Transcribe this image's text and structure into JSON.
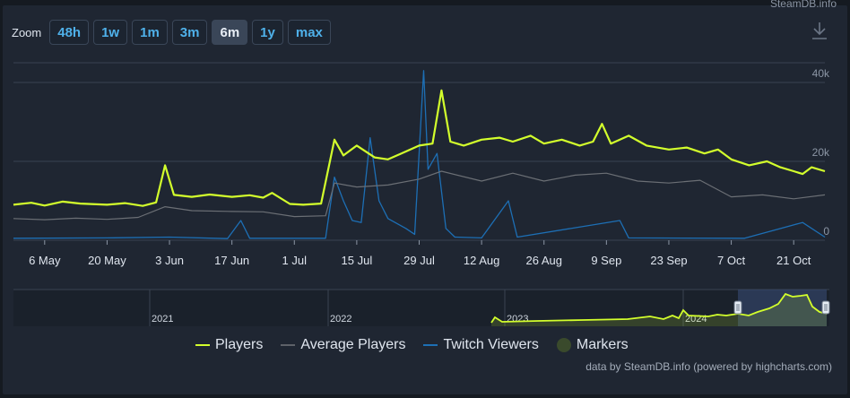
{
  "header": {
    "credit": "SteamDB.info"
  },
  "zoom": {
    "label": "Zoom",
    "buttons": [
      "48h",
      "1w",
      "1m",
      "3m",
      "6m",
      "1y",
      "max"
    ],
    "active": "6m"
  },
  "icons": {
    "download": "download-icon"
  },
  "legend": {
    "players": "Players",
    "average": "Average Players",
    "twitch": "Twitch Viewers",
    "markers": "Markers"
  },
  "footer": {
    "credit": "data by SteamDB.info (powered by highcharts.com)"
  },
  "colors": {
    "players": "#d3ff2c",
    "average": "#6b6f75",
    "twitch": "#1d6fb5",
    "markers": "#3a4a2c",
    "grid": "#3a4352"
  },
  "chart_data": {
    "type": "line",
    "x_range": [
      "2024-04-29",
      "2024-10-28"
    ],
    "y_range": [
      0,
      45000
    ],
    "y_ticks": [
      {
        "value": 0,
        "label": "0"
      },
      {
        "value": 20000,
        "label": "20k"
      },
      {
        "value": 40000,
        "label": "40k"
      }
    ],
    "x_ticks": [
      {
        "date": "2024-05-06",
        "label": "6 May"
      },
      {
        "date": "2024-05-20",
        "label": "20 May"
      },
      {
        "date": "2024-06-03",
        "label": "3 Jun"
      },
      {
        "date": "2024-06-17",
        "label": "17 Jun"
      },
      {
        "date": "2024-07-01",
        "label": "1 Jul"
      },
      {
        "date": "2024-07-15",
        "label": "15 Jul"
      },
      {
        "date": "2024-07-29",
        "label": "29 Jul"
      },
      {
        "date": "2024-08-12",
        "label": "12 Aug"
      },
      {
        "date": "2024-08-26",
        "label": "26 Aug"
      },
      {
        "date": "2024-09-09",
        "label": "9 Sep"
      },
      {
        "date": "2024-09-23",
        "label": "23 Sep"
      },
      {
        "date": "2024-10-07",
        "label": "7 Oct"
      },
      {
        "date": "2024-10-21",
        "label": "21 Oct"
      }
    ],
    "series": [
      {
        "name": "Players",
        "key": "players",
        "points": [
          [
            "2024-04-29",
            9000
          ],
          [
            "2024-05-03",
            9500
          ],
          [
            "2024-05-06",
            8800
          ],
          [
            "2024-05-10",
            9800
          ],
          [
            "2024-05-14",
            9300
          ],
          [
            "2024-05-20",
            9000
          ],
          [
            "2024-05-24",
            9400
          ],
          [
            "2024-05-28",
            8700
          ],
          [
            "2024-05-31",
            9600
          ],
          [
            "2024-06-02",
            19000
          ],
          [
            "2024-06-04",
            11500
          ],
          [
            "2024-06-08",
            11000
          ],
          [
            "2024-06-12",
            11600
          ],
          [
            "2024-06-17",
            11000
          ],
          [
            "2024-06-21",
            11400
          ],
          [
            "2024-06-24",
            10800
          ],
          [
            "2024-06-26",
            12000
          ],
          [
            "2024-06-30",
            9200
          ],
          [
            "2024-07-03",
            9000
          ],
          [
            "2024-07-07",
            9300
          ],
          [
            "2024-07-10",
            25500
          ],
          [
            "2024-07-12",
            21500
          ],
          [
            "2024-07-15",
            24000
          ],
          [
            "2024-07-19",
            21000
          ],
          [
            "2024-07-22",
            20500
          ],
          [
            "2024-07-25",
            22000
          ],
          [
            "2024-07-29",
            24000
          ],
          [
            "2024-08-01",
            24500
          ],
          [
            "2024-08-03",
            38000
          ],
          [
            "2024-08-05",
            25000
          ],
          [
            "2024-08-08",
            24000
          ],
          [
            "2024-08-12",
            25500
          ],
          [
            "2024-08-16",
            26000
          ],
          [
            "2024-08-19",
            25000
          ],
          [
            "2024-08-23",
            26500
          ],
          [
            "2024-08-26",
            24500
          ],
          [
            "2024-08-30",
            25500
          ],
          [
            "2024-09-03",
            24000
          ],
          [
            "2024-09-06",
            25000
          ],
          [
            "2024-09-08",
            29500
          ],
          [
            "2024-09-10",
            24500
          ],
          [
            "2024-09-14",
            26500
          ],
          [
            "2024-09-18",
            24000
          ],
          [
            "2024-09-23",
            23000
          ],
          [
            "2024-09-27",
            23500
          ],
          [
            "2024-10-01",
            22000
          ],
          [
            "2024-10-04",
            23000
          ],
          [
            "2024-10-07",
            20500
          ],
          [
            "2024-10-11",
            19000
          ],
          [
            "2024-10-15",
            20000
          ],
          [
            "2024-10-18",
            18500
          ],
          [
            "2024-10-21",
            17500
          ],
          [
            "2024-10-23",
            16800
          ],
          [
            "2024-10-25",
            18500
          ],
          [
            "2024-10-28",
            17500
          ]
        ]
      },
      {
        "name": "Average Players",
        "key": "average",
        "points": [
          [
            "2024-04-29",
            5500
          ],
          [
            "2024-05-06",
            5200
          ],
          [
            "2024-05-13",
            5600
          ],
          [
            "2024-05-20",
            5300
          ],
          [
            "2024-05-27",
            5800
          ],
          [
            "2024-06-02",
            8500
          ],
          [
            "2024-06-08",
            7500
          ],
          [
            "2024-06-17",
            7300
          ],
          [
            "2024-06-24",
            7200
          ],
          [
            "2024-07-01",
            6000
          ],
          [
            "2024-07-08",
            6200
          ],
          [
            "2024-07-10",
            14500
          ],
          [
            "2024-07-15",
            13500
          ],
          [
            "2024-07-22",
            14000
          ],
          [
            "2024-07-29",
            15500
          ],
          [
            "2024-08-03",
            17500
          ],
          [
            "2024-08-12",
            15000
          ],
          [
            "2024-08-19",
            17000
          ],
          [
            "2024-08-26",
            15000
          ],
          [
            "2024-09-02",
            16500
          ],
          [
            "2024-09-09",
            17000
          ],
          [
            "2024-09-16",
            15000
          ],
          [
            "2024-09-23",
            14500
          ],
          [
            "2024-09-30",
            15200
          ],
          [
            "2024-10-07",
            11000
          ],
          [
            "2024-10-14",
            11500
          ],
          [
            "2024-10-21",
            10500
          ],
          [
            "2024-10-28",
            11500
          ]
        ]
      },
      {
        "name": "Twitch Viewers",
        "key": "twitch",
        "points": [
          [
            "2024-04-29",
            500
          ],
          [
            "2024-05-20",
            600
          ],
          [
            "2024-06-03",
            800
          ],
          [
            "2024-06-16",
            400
          ],
          [
            "2024-06-19",
            5000
          ],
          [
            "2024-06-21",
            500
          ],
          [
            "2024-07-08",
            500
          ],
          [
            "2024-07-10",
            16000
          ],
          [
            "2024-07-12",
            10000
          ],
          [
            "2024-07-14",
            5000
          ],
          [
            "2024-07-16",
            4500
          ],
          [
            "2024-07-18",
            26000
          ],
          [
            "2024-07-20",
            10000
          ],
          [
            "2024-07-22",
            5500
          ],
          [
            "2024-07-26",
            3000
          ],
          [
            "2024-07-28",
            1500
          ],
          [
            "2024-07-30",
            43000
          ],
          [
            "2024-07-31",
            18000
          ],
          [
            "2024-08-02",
            22000
          ],
          [
            "2024-08-04",
            3000
          ],
          [
            "2024-08-06",
            800
          ],
          [
            "2024-08-12",
            600
          ],
          [
            "2024-08-18",
            10000
          ],
          [
            "2024-08-20",
            800
          ],
          [
            "2024-09-12",
            5000
          ],
          [
            "2024-09-14",
            600
          ],
          [
            "2024-10-10",
            500
          ],
          [
            "2024-10-23",
            4500
          ],
          [
            "2024-10-28",
            800
          ]
        ]
      }
    ],
    "navigator": {
      "year_labels": [
        "2021",
        "2022",
        "2023",
        "2024"
      ]
    }
  }
}
